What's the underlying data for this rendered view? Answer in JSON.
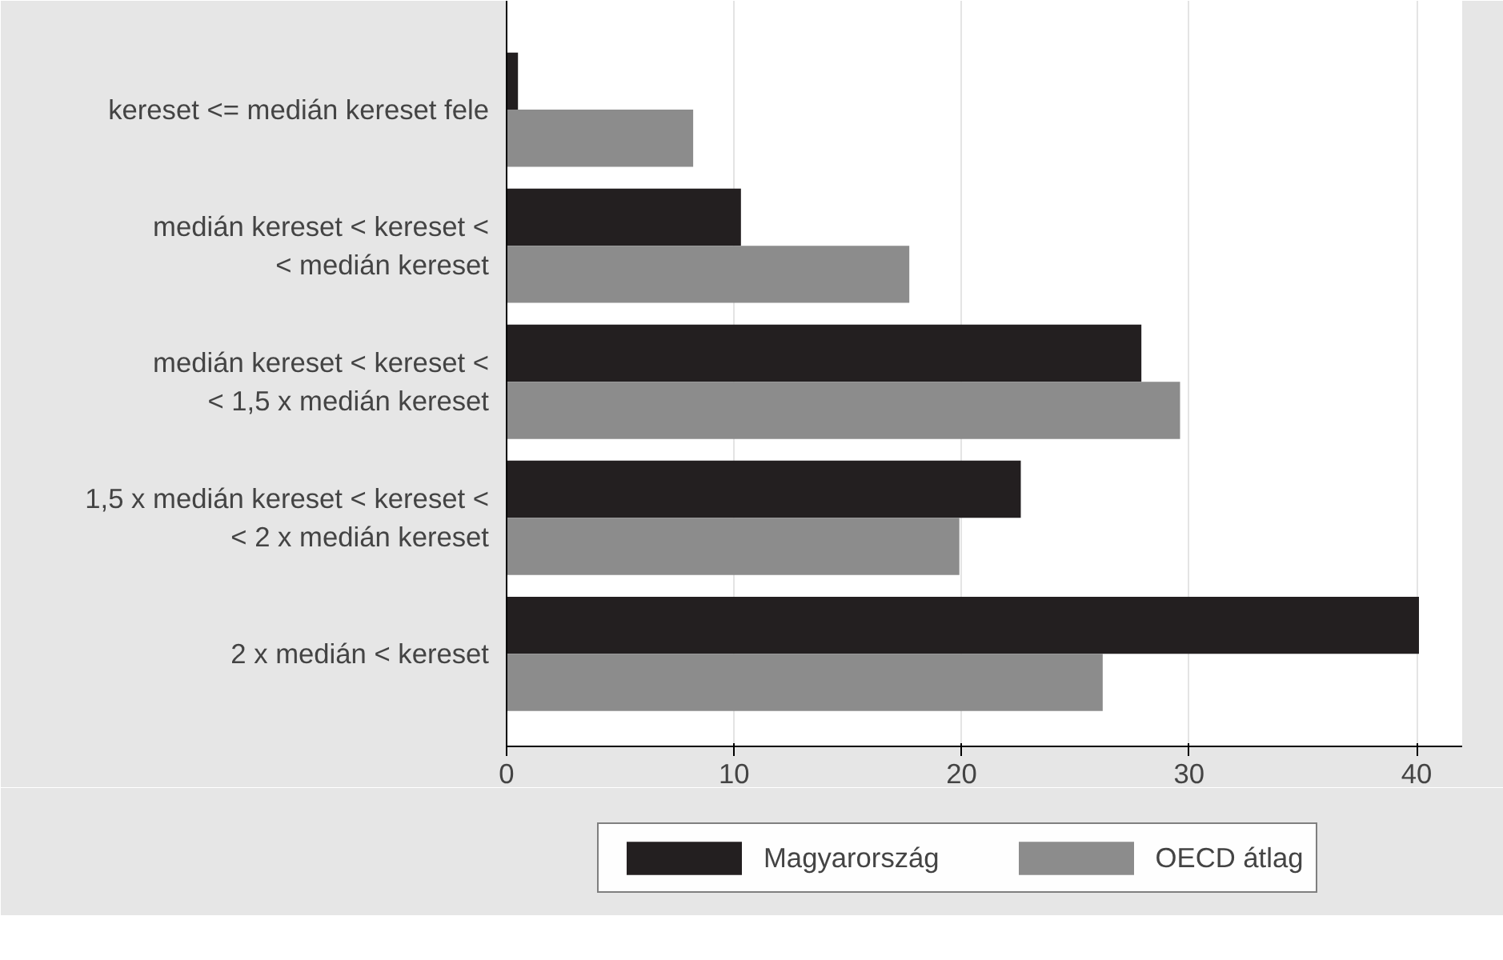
{
  "chart_data": {
    "type": "bar",
    "orientation": "horizontal",
    "categories": [
      "kereset <= medián kereset fele",
      "medián kereset < kereset <\n< medián kereset",
      "medián kereset < kereset <\n< 1,5 x medián kereset",
      "1,5 x medián kereset < kereset <\n< 2 x medián kereset",
      "2 x medián < kereset"
    ],
    "series": [
      {
        "name": "Magyarország",
        "color": "#231f20",
        "values": [
          0.5,
          10.3,
          27.9,
          22.6,
          40.1
        ]
      },
      {
        "name": "OECD átlag",
        "color": "#8c8c8c",
        "values": [
          8.2,
          17.7,
          29.6,
          19.9,
          26.2
        ]
      }
    ],
    "xlim": [
      0,
      42
    ],
    "xticks": [
      0,
      10,
      20,
      30,
      40
    ],
    "grid": "x",
    "legend": "bottom"
  }
}
